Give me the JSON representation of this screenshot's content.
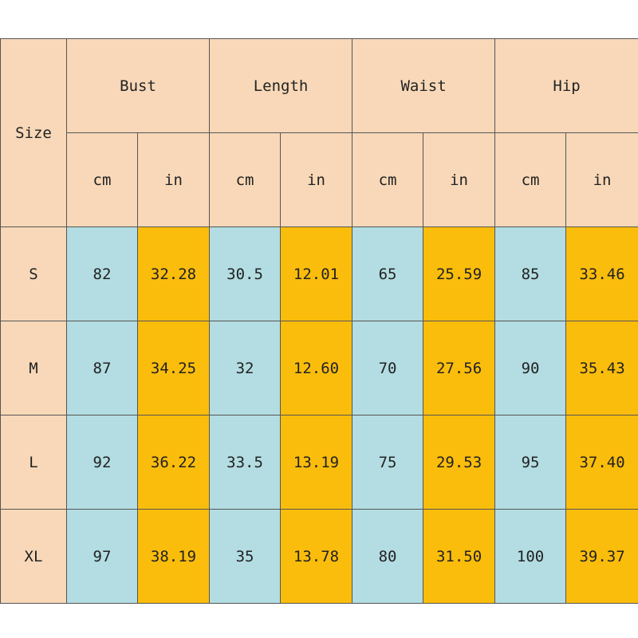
{
  "table": {
    "size_label": "Size",
    "groups": [
      "Bust",
      "Length",
      "Waist",
      "Hip"
    ],
    "units": [
      "cm",
      "in",
      "cm",
      "in",
      "cm",
      "in",
      "cm",
      "in"
    ],
    "rows": [
      {
        "size": "S",
        "values": [
          "82",
          "32.28",
          "30.5",
          "12.01",
          "65",
          "25.59",
          "85",
          "33.46"
        ]
      },
      {
        "size": "M",
        "values": [
          "87",
          "34.25",
          "32",
          "12.60",
          "70",
          "27.56",
          "90",
          "35.43"
        ]
      },
      {
        "size": "L",
        "values": [
          "92",
          "36.22",
          "33.5",
          "13.19",
          "75",
          "29.53",
          "95",
          "37.40"
        ]
      },
      {
        "size": "XL",
        "values": [
          "97",
          "38.19",
          "35",
          "13.78",
          "80",
          "31.50",
          "100",
          "39.37"
        ]
      }
    ]
  },
  "colors": {
    "header_bg": "#f8d8b8",
    "cm_bg": "#b3dde2",
    "in_bg": "#fbbd0c",
    "border": "#555555"
  }
}
